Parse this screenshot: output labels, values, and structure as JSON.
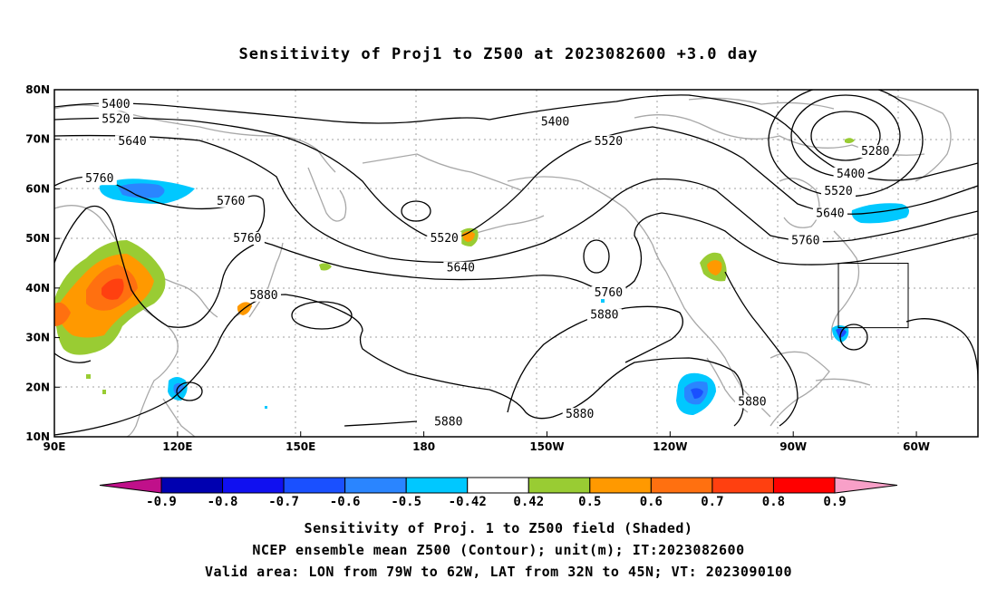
{
  "title": "Sensitivity of Proj1 to Z500 at 2023082600 +3.0 day",
  "axes": {
    "lat_labels": [
      "80N",
      "70N",
      "60N",
      "50N",
      "40N",
      "30N",
      "20N",
      "10N"
    ],
    "lat_values": [
      80,
      70,
      60,
      50,
      40,
      30,
      20,
      10
    ],
    "lon_labels": [
      "90E",
      "120E",
      "150E",
      "180",
      "150W",
      "120W",
      "90W",
      "60W"
    ],
    "lon_values": [
      90,
      120,
      150,
      180,
      210,
      240,
      270,
      300
    ],
    "lon_range": [
      90,
      315
    ],
    "lat_range": [
      10,
      80
    ]
  },
  "contour_labels": [
    {
      "text": "5400",
      "lon": 105,
      "lat": 76.5
    },
    {
      "text": "5520",
      "lon": 105,
      "lat": 73.5
    },
    {
      "text": "5640",
      "lon": 109,
      "lat": 69
    },
    {
      "text": "5760",
      "lon": 101,
      "lat": 61.5
    },
    {
      "text": "5760",
      "lon": 133,
      "lat": 57
    },
    {
      "text": "5760",
      "lon": 137,
      "lat": 49.5
    },
    {
      "text": "5880",
      "lon": 141,
      "lat": 38
    },
    {
      "text": "5400",
      "lon": 212,
      "lat": 73
    },
    {
      "text": "5520",
      "lon": 225,
      "lat": 69
    },
    {
      "text": "5520",
      "lon": 185,
      "lat": 49.5
    },
    {
      "text": "5640",
      "lon": 189,
      "lat": 43.5
    },
    {
      "text": "5760",
      "lon": 225,
      "lat": 38.5
    },
    {
      "text": "5880",
      "lon": 224,
      "lat": 34
    },
    {
      "text": "5880",
      "lon": 186,
      "lat": 12.5
    },
    {
      "text": "5880",
      "lon": 218,
      "lat": 14
    },
    {
      "text": "5880",
      "lon": 260,
      "lat": 16.5
    },
    {
      "text": "5280",
      "lon": 290,
      "lat": 67
    },
    {
      "text": "5400",
      "lon": 284,
      "lat": 62.5
    },
    {
      "text": "5520",
      "lon": 281,
      "lat": 59
    },
    {
      "text": "5640",
      "lon": 279,
      "lat": 54.5
    },
    {
      "text": "5760",
      "lon": 273,
      "lat": 49
    }
  ],
  "valid_area": {
    "lon_west": -79,
    "lon_east": -62,
    "lat_south": 32,
    "lat_north": 45
  },
  "colorbar": {
    "labels": [
      "-0.9",
      "-0.8",
      "-0.7",
      "-0.6",
      "-0.5",
      "-0.42",
      "0.42",
      "0.5",
      "0.6",
      "0.7",
      "0.8",
      "0.9"
    ],
    "colors": [
      "#0000b0",
      "#1010f0",
      "#1a50ff",
      "#2a85ff",
      "#00c8ff",
      "#ffffff",
      "#99cc33",
      "#ff9900",
      "#ff7010",
      "#ff4010",
      "#ff0000"
    ],
    "low_color": "#c0108a",
    "high_color": "#f8a0c8"
  },
  "captions": [
    "Sensitivity of Proj. 1 to Z500 field (Shaded)",
    "NCEP ensemble mean Z500 (Contour); unit(m); IT:2023082600",
    "Valid area: LON from 79W to 62W, LAT from 32N to 45N; VT: 2023090100"
  ]
}
